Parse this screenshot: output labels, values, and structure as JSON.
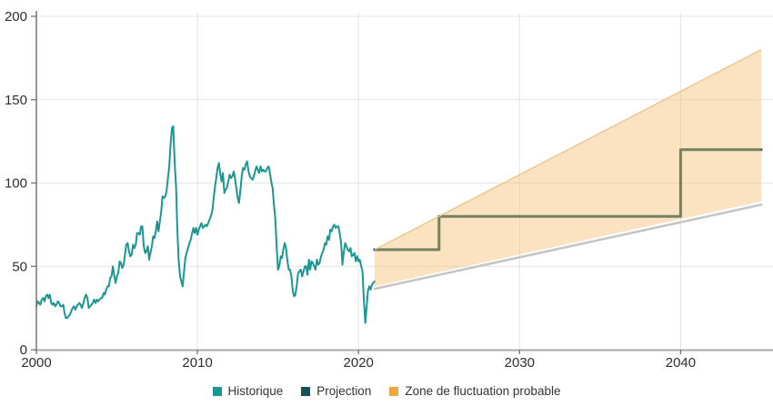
{
  "chart": {
    "legend": [
      {
        "label": "Historique",
        "color": "#1a9793"
      },
      {
        "label": "Projection",
        "color": "#175157"
      },
      {
        "label": "Zone de fluctuation probable",
        "color": "#efa83b"
      }
    ]
  },
  "chart_data": {
    "type": "line",
    "title": "",
    "xlabel": "",
    "ylabel": "",
    "xlim": [
      2000,
      2045
    ],
    "ylim": [
      0,
      200
    ],
    "x_tick_labels": [
      "2000",
      "2010",
      "2020",
      "2030",
      "2040"
    ],
    "x_tick_values": [
      2000,
      2010,
      2020,
      2030,
      2040
    ],
    "y_tick_labels": [
      "0",
      "50",
      "100",
      "150",
      "200"
    ],
    "y_tick_values": [
      0,
      50,
      100,
      150,
      200
    ],
    "grid": true,
    "legend_position": "bottom-center",
    "series": [
      {
        "name": "Historique",
        "type": "line",
        "color": "#1a9793",
        "width": 2,
        "points": [
          [
            2000.0,
            26
          ],
          [
            2000.08,
            29
          ],
          [
            2000.17,
            28
          ],
          [
            2000.25,
            27
          ],
          [
            2000.33,
            30
          ],
          [
            2000.42,
            31
          ],
          [
            2000.5,
            29
          ],
          [
            2000.58,
            32
          ],
          [
            2000.67,
            33
          ],
          [
            2000.75,
            31
          ],
          [
            2000.83,
            33
          ],
          [
            2000.92,
            28
          ],
          [
            2001.0,
            27
          ],
          [
            2001.08,
            28
          ],
          [
            2001.17,
            26
          ],
          [
            2001.25,
            27
          ],
          [
            2001.33,
            29
          ],
          [
            2001.42,
            28
          ],
          [
            2001.5,
            26
          ],
          [
            2001.58,
            26
          ],
          [
            2001.67,
            27
          ],
          [
            2001.75,
            22
          ],
          [
            2001.83,
            19
          ],
          [
            2001.92,
            19
          ],
          [
            2002.0,
            20
          ],
          [
            2002.08,
            21
          ],
          [
            2002.17,
            23
          ],
          [
            2002.25,
            25
          ],
          [
            2002.33,
            26
          ],
          [
            2002.42,
            24
          ],
          [
            2002.5,
            26
          ],
          [
            2002.58,
            27
          ],
          [
            2002.67,
            28
          ],
          [
            2002.75,
            27
          ],
          [
            2002.83,
            25
          ],
          [
            2002.92,
            28
          ],
          [
            2003.0,
            31
          ],
          [
            2003.08,
            33
          ],
          [
            2003.17,
            31
          ],
          [
            2003.25,
            25
          ],
          [
            2003.33,
            26
          ],
          [
            2003.42,
            27
          ],
          [
            2003.5,
            28
          ],
          [
            2003.58,
            30
          ],
          [
            2003.67,
            28
          ],
          [
            2003.75,
            30
          ],
          [
            2003.83,
            29
          ],
          [
            2003.92,
            30
          ],
          [
            2004.0,
            31
          ],
          [
            2004.08,
            31
          ],
          [
            2004.17,
            34
          ],
          [
            2004.25,
            33
          ],
          [
            2004.33,
            36
          ],
          [
            2004.42,
            38
          ],
          [
            2004.5,
            38
          ],
          [
            2004.58,
            43
          ],
          [
            2004.67,
            44
          ],
          [
            2004.75,
            50
          ],
          [
            2004.83,
            45
          ],
          [
            2004.92,
            40
          ],
          [
            2005.0,
            44
          ],
          [
            2005.08,
            46
          ],
          [
            2005.17,
            53
          ],
          [
            2005.25,
            52
          ],
          [
            2005.33,
            49
          ],
          [
            2005.42,
            51
          ],
          [
            2005.5,
            57
          ],
          [
            2005.58,
            63
          ],
          [
            2005.67,
            64
          ],
          [
            2005.75,
            59
          ],
          [
            2005.83,
            56
          ],
          [
            2005.92,
            57
          ],
          [
            2006.0,
            63
          ],
          [
            2006.08,
            61
          ],
          [
            2006.17,
            63
          ],
          [
            2006.25,
            70
          ],
          [
            2006.33,
            70
          ],
          [
            2006.42,
            69
          ],
          [
            2006.5,
            74
          ],
          [
            2006.58,
            74
          ],
          [
            2006.67,
            62
          ],
          [
            2006.75,
            58
          ],
          [
            2006.83,
            59
          ],
          [
            2006.92,
            62
          ],
          [
            2007.0,
            54
          ],
          [
            2007.08,
            58
          ],
          [
            2007.17,
            62
          ],
          [
            2007.25,
            68
          ],
          [
            2007.33,
            67
          ],
          [
            2007.42,
            71
          ],
          [
            2007.5,
            77
          ],
          [
            2007.58,
            71
          ],
          [
            2007.67,
            77
          ],
          [
            2007.75,
            83
          ],
          [
            2007.83,
            92
          ],
          [
            2007.92,
            91
          ],
          [
            2008.0,
            92
          ],
          [
            2008.08,
            95
          ],
          [
            2008.17,
            103
          ],
          [
            2008.25,
            110
          ],
          [
            2008.33,
            123
          ],
          [
            2008.42,
            133
          ],
          [
            2008.5,
            134
          ],
          [
            2008.58,
            113
          ],
          [
            2008.67,
            98
          ],
          [
            2008.75,
            72
          ],
          [
            2008.83,
            54
          ],
          [
            2008.92,
            44
          ],
          [
            2009.0,
            41
          ],
          [
            2009.08,
            38
          ],
          [
            2009.17,
            47
          ],
          [
            2009.25,
            55
          ],
          [
            2009.33,
            58
          ],
          [
            2009.42,
            61
          ],
          [
            2009.5,
            64
          ],
          [
            2009.58,
            66
          ],
          [
            2009.67,
            70
          ],
          [
            2009.75,
            73
          ],
          [
            2009.83,
            70
          ],
          [
            2009.92,
            73
          ],
          [
            2010.0,
            69
          ],
          [
            2010.08,
            72
          ],
          [
            2010.17,
            74
          ],
          [
            2010.25,
            76
          ],
          [
            2010.33,
            73
          ],
          [
            2010.42,
            74
          ],
          [
            2010.5,
            75
          ],
          [
            2010.58,
            74
          ],
          [
            2010.67,
            76
          ],
          [
            2010.75,
            78
          ],
          [
            2010.83,
            80
          ],
          [
            2010.92,
            83
          ],
          [
            2011.0,
            90
          ],
          [
            2011.08,
            97
          ],
          [
            2011.17,
            103
          ],
          [
            2011.25,
            109
          ],
          [
            2011.33,
            112
          ],
          [
            2011.42,
            105
          ],
          [
            2011.5,
            101
          ],
          [
            2011.58,
            106
          ],
          [
            2011.67,
            94
          ],
          [
            2011.75,
            96
          ],
          [
            2011.83,
            97
          ],
          [
            2011.92,
            101
          ],
          [
            2012.0,
            105
          ],
          [
            2012.08,
            103
          ],
          [
            2012.17,
            104
          ],
          [
            2012.25,
            107
          ],
          [
            2012.33,
            103
          ],
          [
            2012.42,
            96
          ],
          [
            2012.5,
            91
          ],
          [
            2012.58,
            88
          ],
          [
            2012.67,
            96
          ],
          [
            2012.75,
            104
          ],
          [
            2012.83,
            109
          ],
          [
            2012.92,
            108
          ],
          [
            2013.0,
            111
          ],
          [
            2013.08,
            113
          ],
          [
            2013.17,
            107
          ],
          [
            2013.25,
            104
          ],
          [
            2013.33,
            103
          ],
          [
            2013.42,
            102
          ],
          [
            2013.5,
            104
          ],
          [
            2013.58,
            107
          ],
          [
            2013.67,
            110
          ],
          [
            2013.75,
            108
          ],
          [
            2013.83,
            106
          ],
          [
            2013.92,
            110
          ],
          [
            2014.0,
            107
          ],
          [
            2014.08,
            108
          ],
          [
            2014.17,
            107
          ],
          [
            2014.25,
            107
          ],
          [
            2014.33,
            109
          ],
          [
            2014.42,
            110
          ],
          [
            2014.5,
            106
          ],
          [
            2014.58,
            101
          ],
          [
            2014.67,
            97
          ],
          [
            2014.75,
            87
          ],
          [
            2014.83,
            79
          ],
          [
            2014.92,
            62
          ],
          [
            2015.0,
            48
          ],
          [
            2015.08,
            50
          ],
          [
            2015.17,
            56
          ],
          [
            2015.25,
            55
          ],
          [
            2015.33,
            60
          ],
          [
            2015.42,
            64
          ],
          [
            2015.5,
            61
          ],
          [
            2015.58,
            54
          ],
          [
            2015.67,
            48
          ],
          [
            2015.75,
            48
          ],
          [
            2015.83,
            44
          ],
          [
            2015.92,
            35
          ],
          [
            2016.0,
            32
          ],
          [
            2016.08,
            33
          ],
          [
            2016.17,
            39
          ],
          [
            2016.25,
            46
          ],
          [
            2016.33,
            47
          ],
          [
            2016.42,
            48
          ],
          [
            2016.5,
            44
          ],
          [
            2016.58,
            47
          ],
          [
            2016.67,
            50
          ],
          [
            2016.75,
            50
          ],
          [
            2016.83,
            45
          ],
          [
            2016.92,
            54
          ],
          [
            2017.0,
            48
          ],
          [
            2017.08,
            53
          ],
          [
            2017.17,
            52
          ],
          [
            2017.25,
            50
          ],
          [
            2017.33,
            48
          ],
          [
            2017.42,
            54
          ],
          [
            2017.5,
            51
          ],
          [
            2017.58,
            52
          ],
          [
            2017.67,
            56
          ],
          [
            2017.75,
            58
          ],
          [
            2017.83,
            60
          ],
          [
            2017.92,
            64
          ],
          [
            2018.0,
            63
          ],
          [
            2018.08,
            68
          ],
          [
            2018.17,
            66
          ],
          [
            2018.25,
            72
          ],
          [
            2018.33,
            71
          ],
          [
            2018.42,
            74
          ],
          [
            2018.5,
            75
          ],
          [
            2018.58,
            73
          ],
          [
            2018.67,
            74
          ],
          [
            2018.75,
            74
          ],
          [
            2018.83,
            70
          ],
          [
            2018.92,
            64
          ],
          [
            2019.0,
            51
          ],
          [
            2019.08,
            58
          ],
          [
            2019.17,
            64
          ],
          [
            2019.25,
            62
          ],
          [
            2019.33,
            60
          ],
          [
            2019.42,
            59
          ],
          [
            2019.5,
            61
          ],
          [
            2019.58,
            56
          ],
          [
            2019.67,
            57
          ],
          [
            2019.75,
            58
          ],
          [
            2019.83,
            53
          ],
          [
            2019.92,
            56
          ],
          [
            2020.0,
            53
          ],
          [
            2020.08,
            54
          ],
          [
            2020.17,
            50
          ],
          [
            2020.25,
            47
          ],
          [
            2020.33,
            30
          ],
          [
            2020.42,
            16
          ],
          [
            2020.5,
            25
          ],
          [
            2020.58,
            35
          ],
          [
            2020.67,
            38
          ],
          [
            2020.75,
            36
          ],
          [
            2020.83,
            39
          ],
          [
            2020.92,
            40
          ],
          [
            2021.0,
            41
          ]
        ]
      },
      {
        "name": "Projection",
        "type": "step-line",
        "color": "#17555a",
        "width": 3,
        "points": [
          [
            2021,
            60
          ],
          [
            2025,
            60
          ],
          [
            2025,
            80
          ],
          [
            2040,
            80
          ],
          [
            2040,
            120
          ],
          [
            2045,
            120
          ]
        ]
      },
      {
        "name": "Zone de fluctuation probable",
        "type": "band",
        "fill": "#f6bd6e",
        "fill_opacity": 0.42,
        "edge_color": "#eec184",
        "upper": [
          [
            2021,
            60
          ],
          [
            2045,
            180
          ]
        ],
        "lower": [
          [
            2021,
            38
          ],
          [
            2045,
            89
          ]
        ]
      },
      {
        "name": "ligne-base-grise",
        "type": "line",
        "color": "#c4c4c4",
        "width": 2.5,
        "points": [
          [
            2021,
            36.5
          ],
          [
            2045,
            87
          ]
        ]
      }
    ]
  },
  "axis_style": {
    "tick_color": "#757575",
    "x_axis_color": "#a8a8a8",
    "grid_color": "#e5e5e5",
    "label_color": "#2e2e2e"
  }
}
